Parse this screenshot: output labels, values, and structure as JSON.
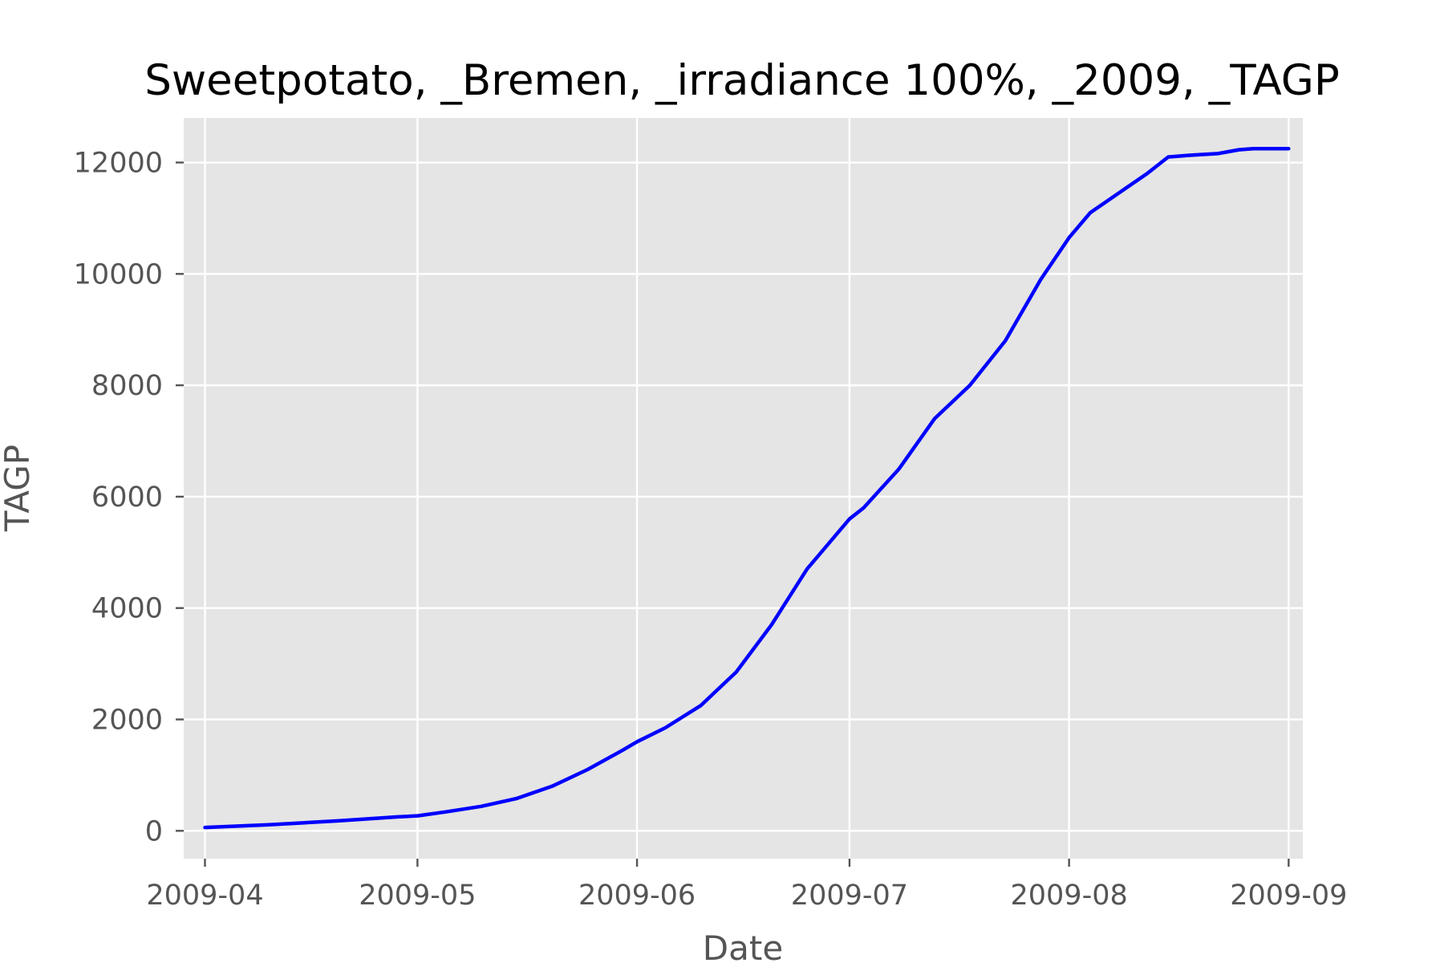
{
  "chart_data": {
    "type": "line",
    "title": "Sweetpotato, _Bremen, _irradiance 100%, _2009, _TAGP",
    "xlabel": "Date",
    "ylabel": "TAGP",
    "x_ticks": [
      "2009-04",
      "2009-05",
      "2009-06",
      "2009-07",
      "2009-08",
      "2009-09"
    ],
    "y_ticks": [
      "0",
      "2000",
      "4000",
      "6000",
      "8000",
      "10000",
      "12000"
    ],
    "xlim": [
      "2009-03-29",
      "2009-09-03"
    ],
    "ylim": [
      -500,
      12800
    ],
    "grid": true,
    "background": "#e5e5e5",
    "grid_color": "#ffffff",
    "series": [
      {
        "color": "#0000ff",
        "x": [
          "2009-04-01",
          "2009-04-10",
          "2009-04-20",
          "2009-04-28",
          "2009-05-01",
          "2009-05-05",
          "2009-05-10",
          "2009-05-15",
          "2009-05-20",
          "2009-05-25",
          "2009-05-30",
          "2009-06-01",
          "2009-06-05",
          "2009-06-10",
          "2009-06-15",
          "2009-06-20",
          "2009-06-25",
          "2009-06-30",
          "2009-07-01",
          "2009-07-03",
          "2009-07-08",
          "2009-07-13",
          "2009-07-18",
          "2009-07-23",
          "2009-07-28",
          "2009-08-01",
          "2009-08-04",
          "2009-08-08",
          "2009-08-12",
          "2009-08-15",
          "2009-08-18",
          "2009-08-22",
          "2009-08-25",
          "2009-08-27",
          "2009-09-01"
        ],
        "y": [
          60,
          110,
          180,
          250,
          270,
          340,
          440,
          580,
          800,
          1100,
          1450,
          1600,
          1850,
          2250,
          2850,
          3700,
          4700,
          5450,
          5600,
          5800,
          6500,
          7400,
          8000,
          8800,
          9900,
          10650,
          11100,
          11450,
          11800,
          12100,
          12130,
          12160,
          12230,
          12250,
          12250
        ]
      }
    ]
  }
}
